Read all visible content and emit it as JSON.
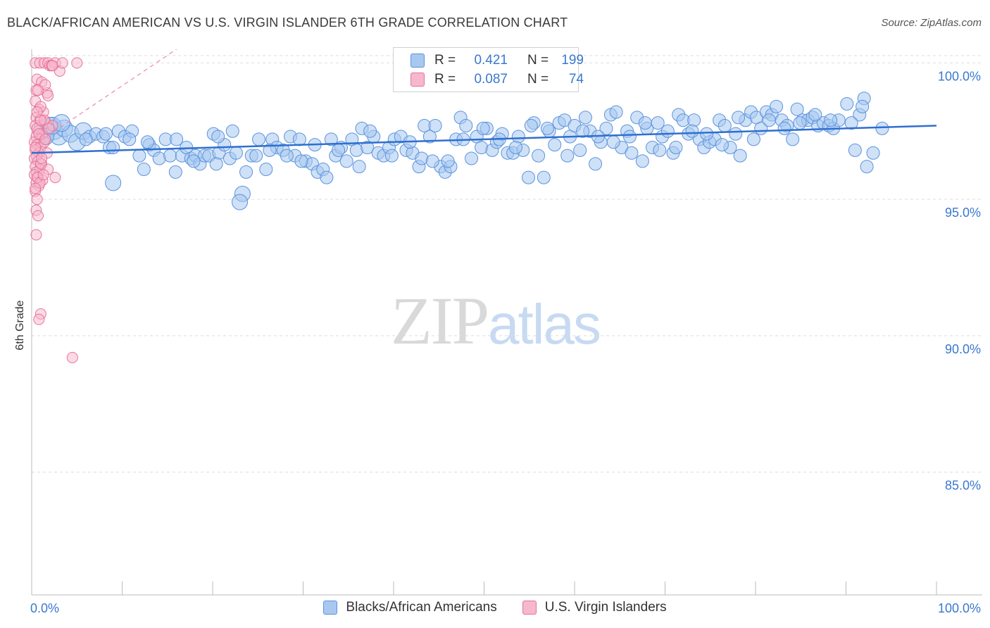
{
  "header": {
    "title": "BLACK/AFRICAN AMERICAN VS U.S. VIRGIN ISLANDER 6TH GRADE CORRELATION CHART",
    "source": "Source: ZipAtlas.com"
  },
  "watermark": {
    "zip": "ZIP",
    "atlas": "atlas"
  },
  "legend_top": {
    "rows": [
      {
        "r_label": "R =",
        "r_value": "0.421",
        "n_label": "N =",
        "n_value": "199"
      },
      {
        "r_label": "R =",
        "r_value": "0.087",
        "n_label": "N =",
        "n_value": "74"
      }
    ]
  },
  "legend_bottom": {
    "items": [
      {
        "label": "Blacks/African Americans"
      },
      {
        "label": "U.S. Virgin Islanders"
      }
    ]
  },
  "colors": {
    "blue_fill": "#a8c8f0",
    "blue_stroke": "#5b93dd",
    "blue_line": "#2f6fd0",
    "pink_fill": "#f6b8cc",
    "pink_stroke": "#e8729a",
    "pink_line": "#e88aaa",
    "grid": "#dddddd",
    "axis_text": "#3a78d0"
  },
  "chart_data": {
    "type": "scatter",
    "title": "BLACK/AFRICAN AMERICAN VS U.S. VIRGIN ISLANDER 6TH GRADE CORRELATION CHART",
    "xlabel": "",
    "ylabel": "6th Grade",
    "xlim": [
      0,
      100
    ],
    "ylim": [
      80.5,
      100.5
    ],
    "x_tick_labels": [
      "0.0%",
      "100.0%"
    ],
    "y_ticks": [
      85,
      90,
      95,
      100
    ],
    "y_tick_labels": [
      "85.0%",
      "90.0%",
      "95.0%",
      "100.0%"
    ],
    "grid": true,
    "legend_placement": "bottom",
    "series": [
      {
        "name": "Blacks/African Americans",
        "trend": {
          "x": [
            0,
            100
          ],
          "y": [
            96.7,
            97.7
          ]
        },
        "points": [
          [
            1.2,
            97.6
          ],
          [
            1.6,
            97.4
          ],
          [
            2.0,
            97.7
          ],
          [
            2.5,
            97.5
          ],
          [
            3.0,
            97.3
          ],
          [
            3.6,
            97.6
          ],
          [
            4.3,
            97.4
          ],
          [
            5.0,
            97.1
          ],
          [
            5.7,
            97.5
          ],
          [
            6.4,
            97.3
          ],
          [
            7.1,
            97.4
          ],
          [
            7.9,
            97.3
          ],
          [
            8.6,
            96.9
          ],
          [
            9.6,
            97.5
          ],
          [
            10.3,
            97.3
          ],
          [
            11.1,
            97.5
          ],
          [
            11.9,
            96.6
          ],
          [
            12.4,
            96.1
          ],
          [
            13.0,
            97.0
          ],
          [
            13.5,
            96.8
          ],
          [
            14.1,
            96.5
          ],
          [
            14.8,
            97.2
          ],
          [
            15.3,
            96.6
          ],
          [
            15.9,
            96.0
          ],
          [
            16.6,
            96.6
          ],
          [
            17.1,
            96.9
          ],
          [
            17.6,
            96.5
          ],
          [
            18.1,
            96.6
          ],
          [
            18.6,
            96.3
          ],
          [
            19.1,
            96.6
          ],
          [
            19.6,
            96.6
          ],
          [
            20.1,
            97.4
          ],
          [
            20.7,
            96.7
          ],
          [
            21.3,
            97.0
          ],
          [
            21.9,
            96.5
          ],
          [
            22.6,
            96.7
          ],
          [
            23.3,
            95.2
          ],
          [
            23.7,
            96.0
          ],
          [
            24.3,
            96.6
          ],
          [
            25.1,
            97.2
          ],
          [
            25.9,
            96.1
          ],
          [
            26.6,
            97.2
          ],
          [
            27.1,
            96.9
          ],
          [
            27.8,
            96.8
          ],
          [
            28.6,
            97.3
          ],
          [
            29.1,
            96.6
          ],
          [
            29.6,
            97.2
          ],
          [
            30.3,
            96.4
          ],
          [
            31.0,
            96.3
          ],
          [
            31.6,
            96.0
          ],
          [
            32.2,
            96.1
          ],
          [
            32.6,
            95.8
          ],
          [
            33.1,
            97.2
          ],
          [
            33.6,
            96.6
          ],
          [
            34.2,
            96.9
          ],
          [
            34.8,
            96.4
          ],
          [
            35.4,
            97.2
          ],
          [
            35.9,
            96.8
          ],
          [
            36.5,
            97.6
          ],
          [
            37.1,
            96.9
          ],
          [
            37.8,
            97.3
          ],
          [
            38.3,
            96.7
          ],
          [
            38.9,
            96.6
          ],
          [
            39.5,
            96.9
          ],
          [
            40.1,
            97.2
          ],
          [
            40.8,
            97.3
          ],
          [
            41.4,
            96.8
          ],
          [
            42.1,
            96.7
          ],
          [
            42.8,
            96.2
          ],
          [
            43.4,
            97.7
          ],
          [
            44.0,
            97.3
          ],
          [
            44.6,
            97.7
          ],
          [
            45.2,
            96.2
          ],
          [
            45.7,
            96.0
          ],
          [
            46.3,
            96.2
          ],
          [
            46.9,
            97.2
          ],
          [
            47.4,
            98.0
          ],
          [
            48.0,
            97.7
          ],
          [
            48.6,
            96.5
          ],
          [
            49.2,
            97.3
          ],
          [
            49.7,
            96.9
          ],
          [
            50.3,
            97.6
          ],
          [
            50.9,
            96.8
          ],
          [
            51.4,
            97.1
          ],
          [
            52.0,
            97.4
          ],
          [
            52.6,
            96.7
          ],
          [
            53.2,
            96.7
          ],
          [
            53.8,
            97.3
          ],
          [
            54.3,
            96.8
          ],
          [
            54.9,
            95.8
          ],
          [
            55.5,
            97.8
          ],
          [
            56.0,
            96.6
          ],
          [
            56.6,
            95.8
          ],
          [
            57.2,
            97.5
          ],
          [
            57.8,
            97.0
          ],
          [
            58.3,
            97.8
          ],
          [
            58.9,
            97.9
          ],
          [
            59.5,
            97.3
          ],
          [
            60.0,
            97.7
          ],
          [
            60.6,
            96.8
          ],
          [
            61.2,
            98.0
          ],
          [
            61.7,
            97.5
          ],
          [
            62.3,
            96.3
          ],
          [
            62.9,
            97.1
          ],
          [
            63.5,
            97.6
          ],
          [
            64.0,
            98.1
          ],
          [
            64.6,
            98.2
          ],
          [
            65.2,
            96.9
          ],
          [
            65.8,
            97.5
          ],
          [
            66.3,
            96.7
          ],
          [
            66.9,
            98.0
          ],
          [
            67.5,
            96.4
          ],
          [
            68.0,
            97.6
          ],
          [
            68.6,
            96.9
          ],
          [
            69.2,
            97.8
          ],
          [
            69.7,
            97.3
          ],
          [
            70.3,
            97.5
          ],
          [
            70.9,
            96.7
          ],
          [
            71.5,
            98.1
          ],
          [
            72.0,
            97.9
          ],
          [
            72.6,
            97.4
          ],
          [
            73.2,
            97.9
          ],
          [
            73.8,
            97.2
          ],
          [
            74.3,
            96.9
          ],
          [
            74.9,
            97.1
          ],
          [
            75.5,
            97.2
          ],
          [
            76.0,
            97.9
          ],
          [
            76.6,
            97.7
          ],
          [
            77.2,
            96.9
          ],
          [
            77.8,
            97.4
          ],
          [
            78.3,
            96.6
          ],
          [
            78.9,
            97.9
          ],
          [
            79.5,
            98.2
          ],
          [
            80.1,
            98.0
          ],
          [
            80.6,
            97.6
          ],
          [
            81.2,
            98.2
          ],
          [
            81.8,
            98.1
          ],
          [
            82.3,
            98.4
          ],
          [
            82.9,
            97.9
          ],
          [
            83.5,
            97.7
          ],
          [
            84.1,
            97.2
          ],
          [
            84.6,
            98.3
          ],
          [
            85.2,
            97.9
          ],
          [
            85.8,
            97.9
          ],
          [
            86.3,
            98.0
          ],
          [
            86.9,
            97.7
          ],
          [
            87.5,
            97.8
          ],
          [
            88.1,
            97.7
          ],
          [
            88.6,
            97.6
          ],
          [
            89.2,
            97.9
          ],
          [
            90.1,
            98.5
          ],
          [
            91.0,
            96.8
          ],
          [
            91.5,
            98.1
          ],
          [
            92.0,
            98.7
          ],
          [
            92.3,
            96.2
          ],
          [
            93.0,
            96.7
          ],
          [
            94.0,
            97.6
          ],
          [
            1.5,
            97.3
          ],
          [
            2.3,
            97.7
          ],
          [
            3.3,
            97.8
          ],
          [
            6.0,
            97.2
          ],
          [
            8.2,
            97.4
          ],
          [
            9.0,
            96.9
          ],
          [
            10.8,
            97.2
          ],
          [
            12.8,
            97.1
          ],
          [
            16.0,
            97.2
          ],
          [
            17.9,
            96.4
          ],
          [
            20.4,
            96.3
          ],
          [
            22.2,
            97.5
          ],
          [
            24.8,
            96.6
          ],
          [
            26.3,
            96.8
          ],
          [
            28.2,
            96.6
          ],
          [
            29.8,
            96.4
          ],
          [
            31.3,
            97.0
          ],
          [
            33.9,
            96.8
          ],
          [
            36.2,
            96.2
          ],
          [
            37.4,
            97.5
          ],
          [
            39.8,
            96.6
          ],
          [
            41.8,
            97.1
          ],
          [
            43.1,
            96.5
          ],
          [
            44.3,
            96.4
          ],
          [
            46.0,
            96.4
          ],
          [
            47.7,
            97.2
          ],
          [
            49.9,
            97.6
          ],
          [
            51.7,
            97.2
          ],
          [
            53.5,
            96.9
          ],
          [
            55.2,
            97.7
          ],
          [
            57.0,
            97.6
          ],
          [
            59.2,
            96.6
          ],
          [
            60.9,
            97.5
          ],
          [
            62.6,
            97.3
          ],
          [
            64.3,
            97.1
          ],
          [
            66.1,
            97.3
          ],
          [
            67.8,
            97.8
          ],
          [
            69.4,
            96.8
          ],
          [
            71.2,
            96.9
          ],
          [
            73.0,
            97.5
          ],
          [
            74.6,
            97.4
          ],
          [
            76.3,
            97.0
          ],
          [
            78.1,
            98.0
          ],
          [
            79.8,
            97.2
          ],
          [
            81.5,
            97.9
          ],
          [
            83.2,
            97.6
          ],
          [
            84.9,
            97.8
          ],
          [
            86.6,
            98.1
          ],
          [
            88.3,
            97.9
          ],
          [
            90.6,
            97.8
          ],
          [
            91.8,
            98.4
          ],
          [
            23.0,
            94.9
          ],
          [
            9.0,
            95.6
          ],
          [
            20.6,
            97.3
          ]
        ]
      },
      {
        "name": "U.S. Virgin Islanders",
        "trend": {
          "x": [
            0.3,
            16.0
          ],
          "y": [
            97.0,
            100.5
          ]
        },
        "points": [
          [
            0.4,
            100.0
          ],
          [
            0.9,
            100.0
          ],
          [
            1.4,
            100.0
          ],
          [
            1.8,
            100.0
          ],
          [
            2.6,
            100.0
          ],
          [
            0.6,
            99.4
          ],
          [
            1.1,
            99.3
          ],
          [
            0.5,
            99.0
          ],
          [
            1.7,
            98.9
          ],
          [
            0.4,
            98.6
          ],
          [
            0.8,
            98.3
          ],
          [
            1.3,
            98.2
          ],
          [
            0.5,
            98.0
          ],
          [
            0.9,
            97.9
          ],
          [
            1.6,
            97.8
          ],
          [
            0.4,
            97.7
          ],
          [
            0.7,
            97.5
          ],
          [
            1.2,
            97.4
          ],
          [
            0.5,
            97.3
          ],
          [
            0.9,
            97.2
          ],
          [
            0.3,
            97.1
          ],
          [
            0.6,
            97.0
          ],
          [
            1.0,
            96.9
          ],
          [
            0.4,
            96.8
          ],
          [
            0.8,
            96.7
          ],
          [
            0.5,
            96.6
          ],
          [
            0.3,
            96.5
          ],
          [
            0.7,
            96.4
          ],
          [
            1.1,
            96.3
          ],
          [
            0.4,
            96.2
          ],
          [
            0.9,
            96.1
          ],
          [
            0.5,
            96.0
          ],
          [
            0.3,
            95.9
          ],
          [
            0.7,
            95.8
          ],
          [
            1.2,
            95.7
          ],
          [
            0.5,
            95.6
          ],
          [
            0.8,
            95.5
          ],
          [
            0.4,
            95.3
          ],
          [
            0.6,
            95.0
          ],
          [
            0.5,
            94.6
          ],
          [
            0.7,
            94.4
          ],
          [
            0.5,
            93.7
          ],
          [
            1.0,
            90.8
          ],
          [
            0.8,
            90.6
          ],
          [
            4.5,
            89.2
          ],
          [
            3.1,
            99.7
          ],
          [
            2.0,
            99.9
          ],
          [
            3.4,
            100.0
          ],
          [
            5.0,
            100.0
          ],
          [
            2.2,
            99.9
          ],
          [
            1.5,
            99.2
          ],
          [
            1.0,
            98.4
          ],
          [
            1.4,
            97.9
          ],
          [
            2.3,
            97.7
          ],
          [
            0.6,
            97.6
          ],
          [
            1.9,
            97.6
          ],
          [
            0.8,
            97.4
          ],
          [
            1.4,
            97.1
          ],
          [
            1.7,
            96.7
          ],
          [
            1.0,
            96.3
          ],
          [
            2.6,
            95.8
          ],
          [
            0.6,
            95.8
          ],
          [
            1.8,
            96.1
          ],
          [
            0.9,
            95.6
          ],
          [
            1.3,
            95.9
          ],
          [
            0.4,
            95.4
          ],
          [
            0.7,
            99.0
          ],
          [
            1.8,
            98.8
          ],
          [
            2.3,
            99.9
          ],
          [
            1.0,
            97.9
          ],
          [
            0.6,
            98.2
          ],
          [
            1.5,
            97.2
          ],
          [
            1.1,
            96.5
          ],
          [
            0.4,
            96.9
          ]
        ]
      }
    ]
  }
}
